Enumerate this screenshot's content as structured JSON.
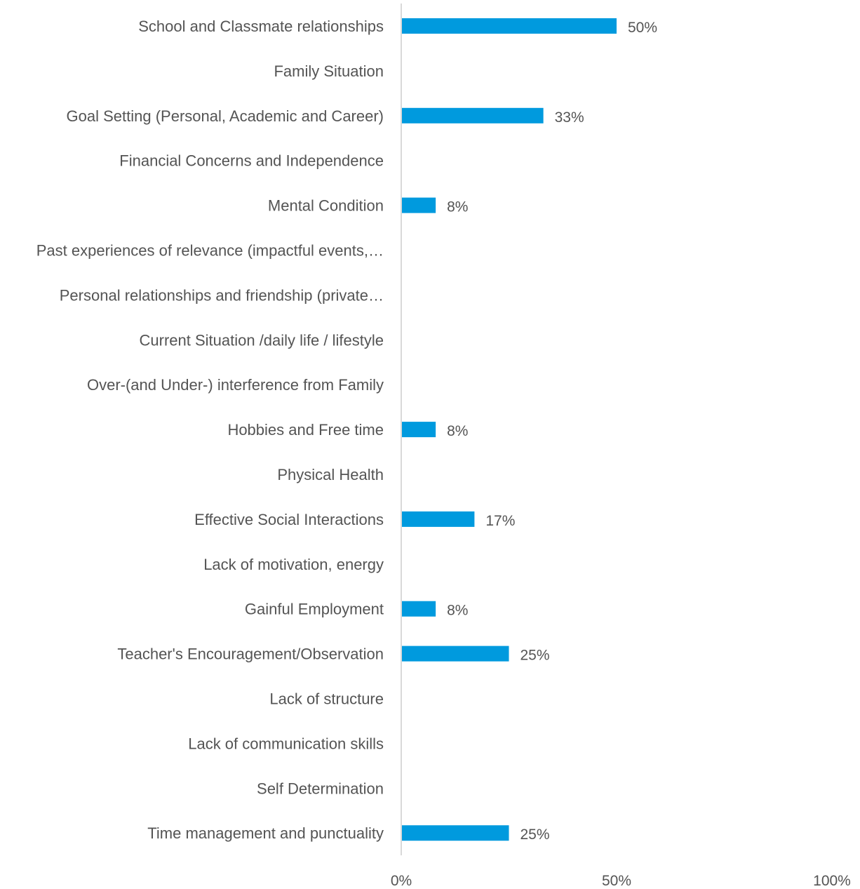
{
  "chart_data": {
    "type": "bar",
    "orientation": "horizontal",
    "categories": [
      "School and Classmate relationships",
      "Family Situation",
      "Goal Setting (Personal, Academic and Career)",
      "Financial Concerns and Independence",
      "Mental Condition",
      "Past experiences of relevance (impactful events,…",
      "Personal relationships and friendship (private…",
      "Current Situation /daily life / lifestyle",
      "Over-(and Under-) interference from Family",
      "Hobbies and Free time",
      "Physical Health",
      "Effective Social Interactions",
      "Lack of motivation, energy",
      "Gainful Employment",
      "Teacher's Encouragement/Observation",
      "Lack of structure",
      "Lack of communication skills",
      "Self Determination",
      "Time management and punctuality"
    ],
    "values": [
      50,
      0,
      33,
      0,
      8,
      0,
      0,
      0,
      0,
      8,
      0,
      17,
      0,
      8,
      25,
      0,
      0,
      0,
      25
    ],
    "data_labels": [
      "50%",
      "",
      "33%",
      "",
      "8%",
      "",
      "",
      "",
      "",
      "8%",
      "",
      "17%",
      "",
      "8%",
      "25%",
      "",
      "",
      "",
      "25%"
    ],
    "xlim": [
      0,
      100
    ],
    "x_ticks": [
      "0%",
      "50%",
      "100%"
    ],
    "title": "",
    "xlabel": "",
    "ylabel": "",
    "grid": false,
    "legend": "none",
    "bar_color": "#009ADE",
    "axis_color": "#D9D9D9",
    "text_color": "#545454"
  }
}
